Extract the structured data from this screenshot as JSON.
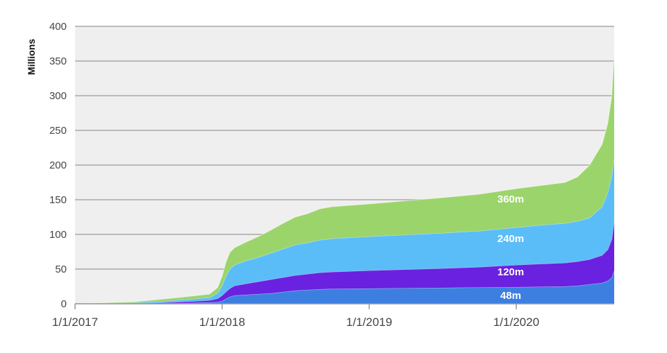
{
  "chart_data": {
    "type": "area",
    "stacked": true,
    "title": "",
    "xlabel": "",
    "ylabel": "Millions",
    "ylim": [
      0,
      400
    ],
    "yticks": [
      0,
      50,
      100,
      150,
      200,
      250,
      300,
      350,
      400
    ],
    "xlim": [
      "2017-01-01",
      "2020-08-31"
    ],
    "xticks": [
      {
        "date": "2017-01-01",
        "label": "1/1/2017"
      },
      {
        "date": "2018-01-01",
        "label": "1/1/2018"
      },
      {
        "date": "2019-01-01",
        "label": "1/1/2019"
      },
      {
        "date": "2020-01-01",
        "label": "1/1/2020"
      }
    ],
    "grid": "horizontal",
    "background": "#efefef",
    "x": [
      "2017-01-01",
      "2017-06-01",
      "2017-08-01",
      "2017-10-01",
      "2017-12-01",
      "2017-12-21",
      "2018-01-01",
      "2018-01-10",
      "2018-01-20",
      "2018-02-01",
      "2018-03-01",
      "2018-04-01",
      "2018-05-01",
      "2018-06-01",
      "2018-07-01",
      "2018-08-01",
      "2018-09-01",
      "2018-10-01",
      "2019-01-01",
      "2019-04-01",
      "2019-07-01",
      "2019-10-01",
      "2020-01-01",
      "2020-03-01",
      "2020-05-01",
      "2020-06-01",
      "2020-07-01",
      "2020-08-01",
      "2020-08-15",
      "2020-08-25",
      "2020-08-31"
    ],
    "series": [
      {
        "color": "#3d7fe0",
        "values": [
          0,
          0,
          0.5,
          1,
          2,
          2.5,
          4,
          7,
          10,
          12,
          13,
          14,
          15,
          17,
          19,
          20,
          21,
          21.5,
          22,
          22.5,
          23,
          23.5,
          24,
          24.5,
          25,
          26,
          28,
          30,
          33,
          38,
          48
        ]
      },
      {
        "color": "#6b21e0",
        "values": [
          0,
          0.5,
          1,
          2,
          3,
          5,
          8,
          10,
          12,
          14,
          16,
          18,
          20,
          21,
          22,
          23,
          24,
          24.5,
          26,
          27,
          28,
          29.5,
          32,
          33,
          34,
          35,
          36,
          40,
          45,
          55,
          72
        ]
      },
      {
        "color": "#5bbdf7",
        "values": [
          0,
          1,
          2,
          3,
          4,
          8,
          14,
          22,
          28,
          30,
          33,
          35,
          38,
          41,
          44,
          45,
          47,
          48,
          49,
          50,
          51,
          52,
          54,
          56,
          57,
          58,
          60,
          70,
          82,
          92,
          90
        ]
      },
      {
        "color": "#9cd46c",
        "values": [
          0,
          1.5,
          3,
          4,
          5,
          8,
          14,
          20,
          24,
          25,
          27,
          30,
          33,
          37,
          40,
          42,
          45,
          46,
          47,
          49,
          51,
          53,
          56,
          57,
          59,
          64,
          76,
          90,
          100,
          115,
          150
        ]
      }
    ],
    "annotations": [
      {
        "text": "48m",
        "x": "2020-01-01",
        "y": 12
      },
      {
        "text": "120m",
        "x": "2020-01-01",
        "y": 46
      },
      {
        "text": "240m",
        "x": "2020-01-01",
        "y": 94
      },
      {
        "text": "360m",
        "x": "2020-01-01",
        "y": 151
      }
    ]
  }
}
